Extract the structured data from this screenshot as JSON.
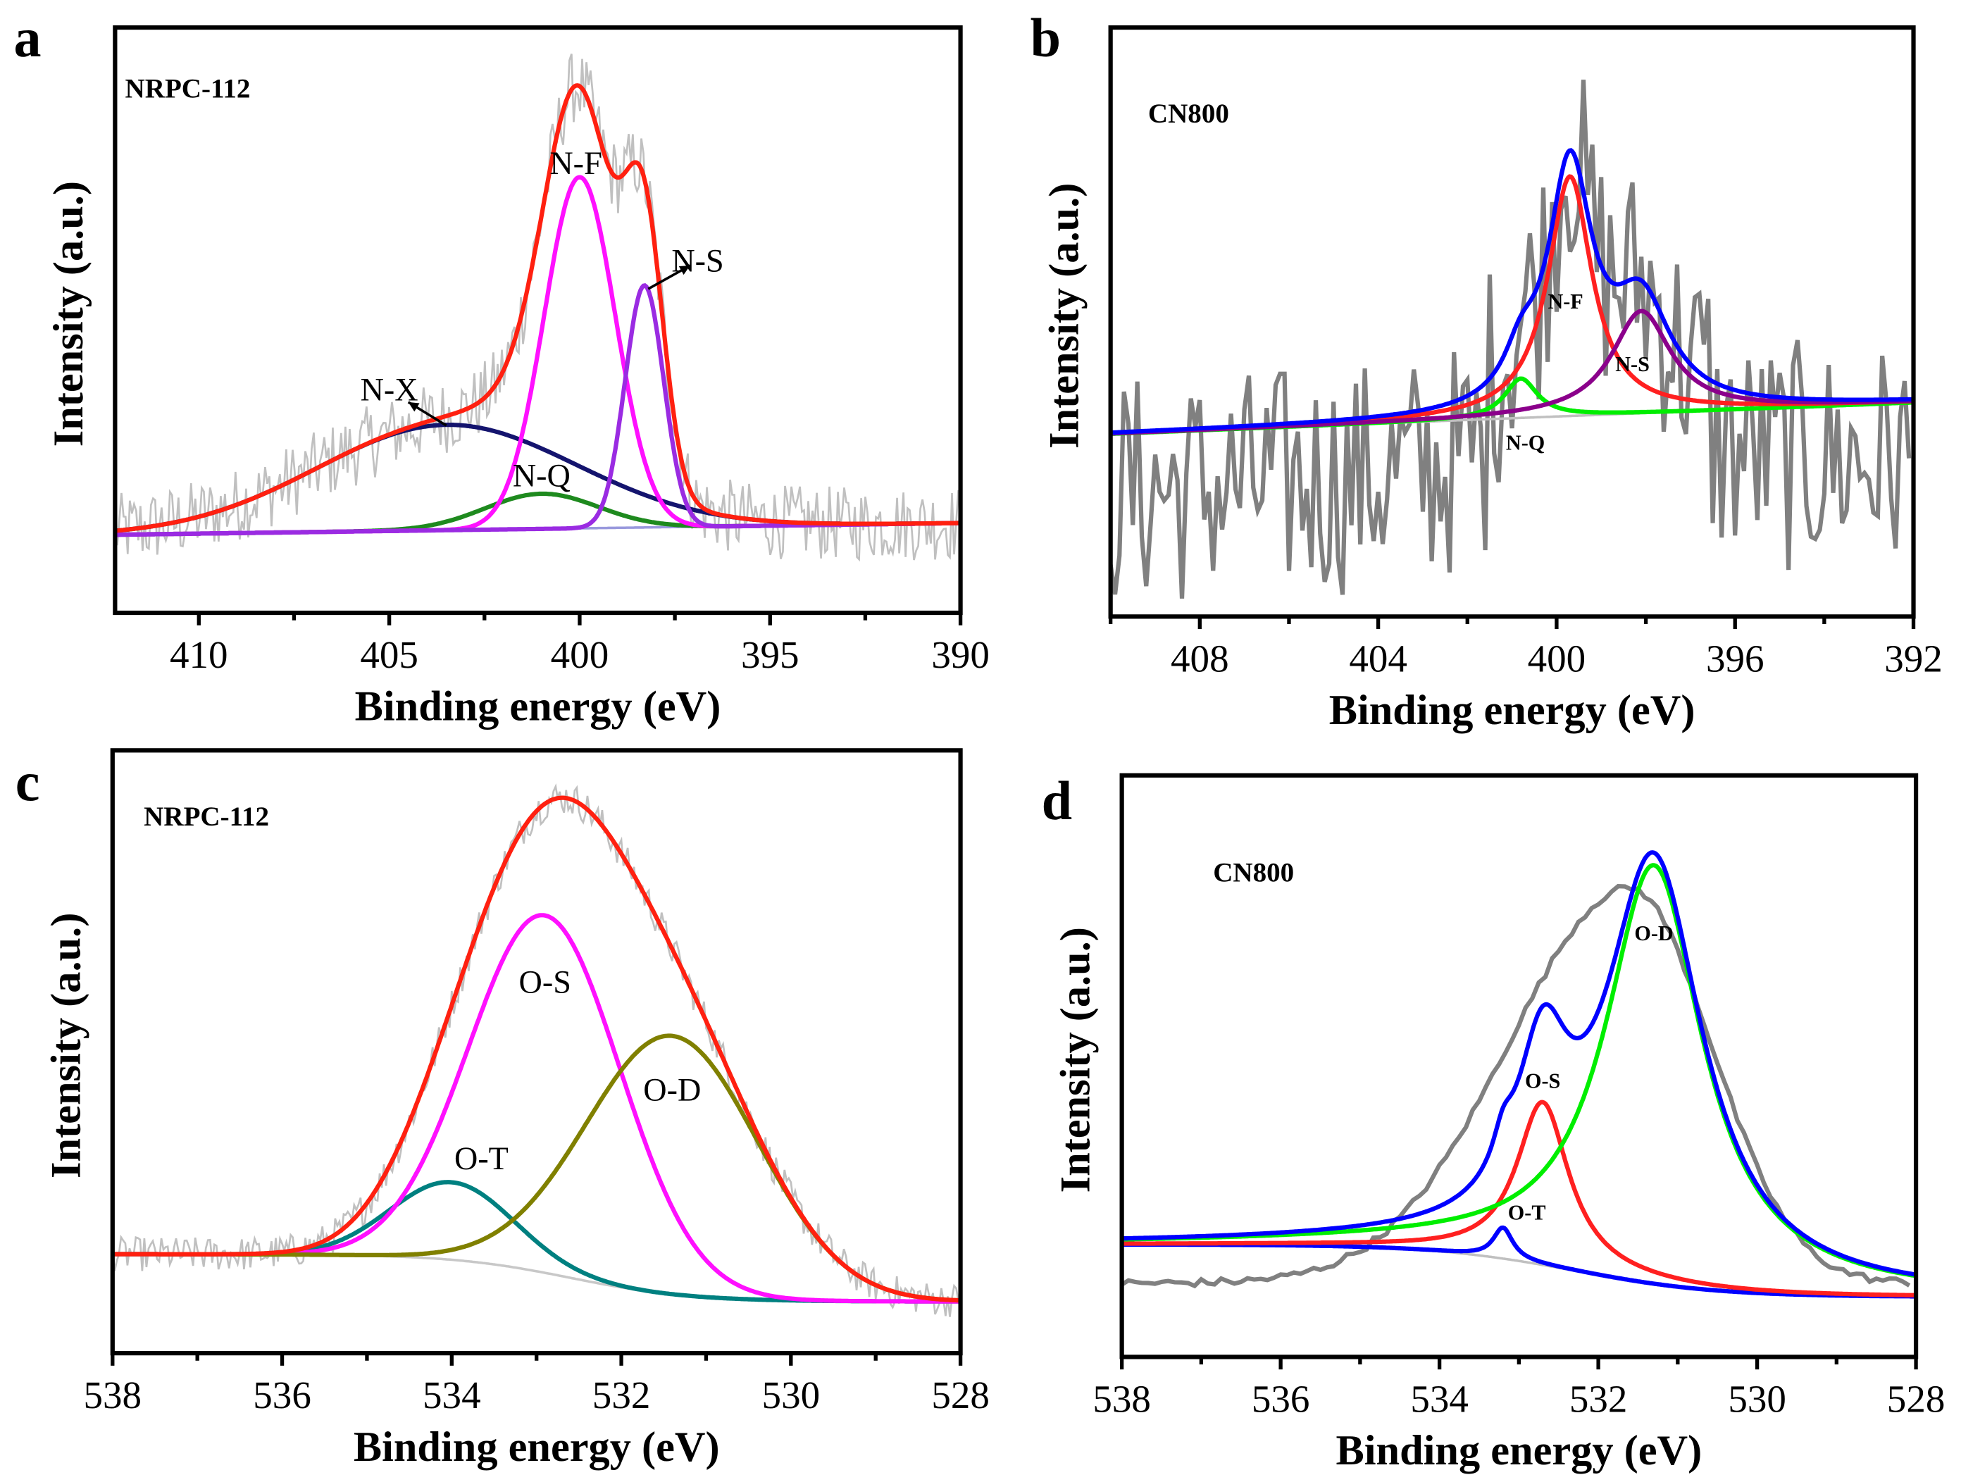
{
  "chart_data": [
    {
      "panel": "a",
      "type": "line",
      "sample": "NRPC-112",
      "xlabel": "Binding energy (eV)",
      "ylabel": "Intensity (a.u.)",
      "xlim": [
        412.2,
        390
      ],
      "ylim": [
        -0.2,
        1.3
      ],
      "xticks": [
        410,
        405,
        400,
        395,
        390
      ],
      "xtick_labels": [
        "410",
        "405",
        "400",
        "395",
        "390"
      ],
      "minor_step": 2.5,
      "peak_shape": "gaussian",
      "raw_color": "#c0c0c0",
      "raw_noise": 0.06,
      "envelope_color": "#ff2010",
      "baseline": {
        "type": "linear",
        "points": [
          [
            412.2,
            0
          ],
          [
            390,
            0.03
          ]
        ],
        "color": "#9999dd"
      },
      "components": [
        {
          "name": "N-X",
          "center": 403.5,
          "fwhm": 8.0,
          "height": 0.27,
          "color": "#14146e"
        },
        {
          "name": "N-Q",
          "center": 401.0,
          "fwhm": 3.5,
          "height": 0.09,
          "color": "#1e8a1e"
        },
        {
          "name": "N-F",
          "center": 400.0,
          "fwhm": 2.2,
          "height": 0.9,
          "color": "#ff10ff"
        },
        {
          "name": "N-S",
          "center": 398.3,
          "fwhm": 1.2,
          "height": 0.62,
          "color": "#9a2be2"
        }
      ],
      "annotations": [
        {
          "text": "N-F",
          "x": 400.1,
          "y": 0.95
        },
        {
          "text": "N-S",
          "x": 396.9,
          "y": 0.7,
          "arrow_from": [
            398.2,
            0.63
          ],
          "arrow_to": [
            397.1,
            0.69
          ]
        },
        {
          "text": "N-X",
          "x": 405.0,
          "y": 0.37,
          "arrow_from": [
            403.5,
            0.28
          ],
          "arrow_to": [
            404.5,
            0.34
          ]
        },
        {
          "text": "N-Q",
          "x": 401.0,
          "y": 0.15
        }
      ]
    },
    {
      "panel": "b",
      "type": "line",
      "sample": "CN800",
      "xlabel": "Binding energy (eV)",
      "ylabel": "Intensity (a.u.)",
      "xlim": [
        410,
        392
      ],
      "ylim": [
        -0.5,
        1.0
      ],
      "xticks": [
        408,
        404,
        400,
        396,
        392
      ],
      "xtick_labels": [
        "408",
        "404",
        "400",
        "396",
        "392"
      ],
      "minor_step": 2,
      "peak_shape": "lorentzian",
      "raw_color": "#808080",
      "raw_noise": 0.15,
      "envelope_color": "#0000ff",
      "baseline": {
        "type": "linear",
        "points": [
          [
            410,
            -0.035
          ],
          [
            392,
            0.045
          ]
        ],
        "color": "#c0c0c0"
      },
      "components": [
        {
          "name": "N-Q",
          "center": 400.8,
          "fwhm": 0.9,
          "height": 0.1,
          "color": "#00ee00"
        },
        {
          "name": "N-F",
          "center": 399.7,
          "fwhm": 1.2,
          "height": 0.61,
          "color": "#ff2020"
        },
        {
          "name": "N-S",
          "center": 398.1,
          "fwhm": 1.6,
          "height": 0.26,
          "color": "#8b008b"
        }
      ],
      "annotations": [
        {
          "text": "N-F",
          "x": 399.8,
          "y": 0.31
        },
        {
          "text": "N-S",
          "x": 398.3,
          "y": 0.15
        },
        {
          "text": "N-Q",
          "x": 400.7,
          "y": -0.05
        }
      ]
    },
    {
      "panel": "c",
      "type": "line",
      "sample": "NRPC-112",
      "xlabel": "Binding energy (eV)",
      "ylabel": "Intensity (a.u.)",
      "xlim": [
        538,
        528
      ],
      "ylim": [
        -0.1,
        1.3
      ],
      "xticks": [
        538,
        536,
        534,
        532,
        530,
        528
      ],
      "xtick_labels": [
        "538",
        "536",
        "534",
        "532",
        "530",
        "528"
      ],
      "minor_step": 1,
      "peak_shape": "gaussian",
      "raw_color": "#c0c0c0",
      "raw_noise": 0.025,
      "envelope_color": "#ff2010",
      "baseline": {
        "type": "step",
        "high": 0.13,
        "low": 0.02,
        "center": 532.6,
        "width": 0.7,
        "color": "#c8c8c8"
      },
      "components": [
        {
          "name": "O-T",
          "center": 534.0,
          "fwhm": 1.7,
          "height": 0.18,
          "color": "#008080"
        },
        {
          "name": "O-S",
          "center": 532.9,
          "fwhm": 2.1,
          "height": 0.83,
          "color": "#ff10ff"
        },
        {
          "name": "O-D",
          "center": 531.4,
          "fwhm": 2.4,
          "height": 0.6,
          "color": "#808000"
        }
      ],
      "annotations": [
        {
          "text": "O-S",
          "x": 532.9,
          "y": 0.76
        },
        {
          "text": "O-D",
          "x": 531.4,
          "y": 0.51
        },
        {
          "text": "O-T",
          "x": 533.65,
          "y": 0.35
        }
      ]
    },
    {
      "panel": "d",
      "type": "line",
      "sample": "CN800",
      "xlabel": "Binding energy (eV)",
      "ylabel": "Intensity (a.u.)",
      "xlim": [
        538,
        528
      ],
      "ylim": [
        -0.1,
        1.4
      ],
      "xticks": [
        538,
        536,
        534,
        532,
        530,
        528
      ],
      "xtick_labels": [
        "538",
        "536",
        "534",
        "532",
        "530",
        "528"
      ],
      "minor_step": 1,
      "peak_shape": "lorentzian",
      "raw_color": "#808080",
      "raw_noise": 0.01,
      "raw_model": {
        "baseline": 0.09,
        "center": 531.6,
        "height": 1.02,
        "fwhm_high_side": 3.6,
        "fwhm_low_side": 2.4
      },
      "envelope_color": "#0000ff",
      "baseline": {
        "type": "step",
        "high": 0.19,
        "low": 0.055,
        "center": 532.3,
        "width": 0.9,
        "color": "#c0c0c0"
      },
      "components": [
        {
          "name": "O-T",
          "center": 533.2,
          "fwhm": 0.3,
          "height": 0.08,
          "color": "#0000ff"
        },
        {
          "name": "O-S",
          "center": 532.7,
          "fwhm": 0.8,
          "height": 0.42,
          "color": "#ff2020"
        },
        {
          "name": "O-D",
          "center": 531.3,
          "fwhm": 1.5,
          "height": 1.08,
          "color": "#00ee00"
        }
      ],
      "annotations": [
        {
          "text": "O-D",
          "x": 531.3,
          "y": 1.0
        },
        {
          "text": "O-S",
          "x": 532.7,
          "y": 0.62
        },
        {
          "text": "O-T",
          "x": 532.9,
          "y": 0.28
        }
      ]
    }
  ]
}
